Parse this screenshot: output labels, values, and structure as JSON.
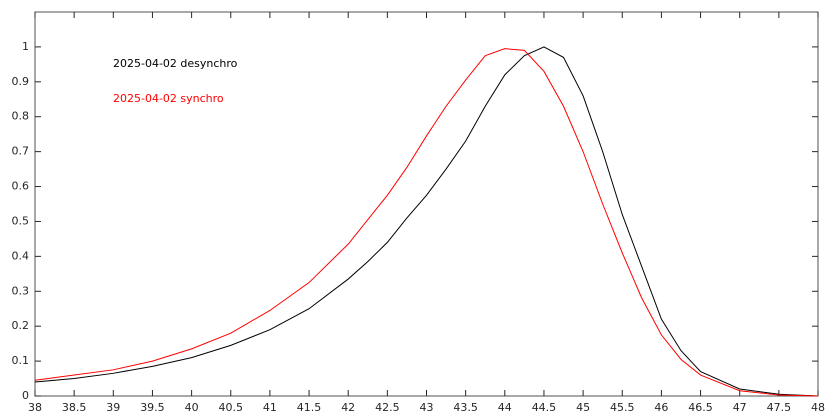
{
  "chart_data": {
    "type": "line",
    "x": [
      38,
      38.5,
      39,
      39.5,
      40,
      40.5,
      41,
      41.5,
      42,
      42.25,
      42.5,
      42.75,
      43,
      43.25,
      43.5,
      43.75,
      44,
      44.25,
      44.5,
      44.75,
      45,
      45.25,
      45.5,
      45.75,
      46,
      46.25,
      46.5,
      47,
      47.5,
      48
    ],
    "series": [
      {
        "name": "2025-04-02 desynchro",
        "color": "#000000",
        "values": [
          0.04,
          0.05,
          0.065,
          0.085,
          0.11,
          0.145,
          0.19,
          0.25,
          0.335,
          0.385,
          0.44,
          0.51,
          0.575,
          0.65,
          0.73,
          0.83,
          0.92,
          0.975,
          1.0,
          0.97,
          0.86,
          0.7,
          0.52,
          0.37,
          0.22,
          0.13,
          0.07,
          0.02,
          0.005,
          0.0
        ]
      },
      {
        "name": "2025-04-02 synchro",
        "color": "#ff0000",
        "values": [
          0.045,
          0.06,
          0.075,
          0.1,
          0.135,
          0.18,
          0.245,
          0.325,
          0.435,
          0.505,
          0.575,
          0.655,
          0.745,
          0.83,
          0.905,
          0.975,
          0.995,
          0.99,
          0.93,
          0.83,
          0.7,
          0.55,
          0.41,
          0.28,
          0.175,
          0.105,
          0.06,
          0.015,
          0.003,
          0.0
        ]
      }
    ],
    "xlim": [
      38,
      48
    ],
    "xticks": [
      38,
      38.5,
      39,
      39.5,
      40,
      40.5,
      41,
      41.5,
      42,
      42.5,
      43,
      43.5,
      44,
      44.5,
      45,
      45.5,
      46,
      46.5,
      47,
      47.5,
      48
    ],
    "ylim": [
      0,
      1.1
    ],
    "yticks": [
      0,
      0.1,
      0.2,
      0.3,
      0.4,
      0.5,
      0.6,
      0.7,
      0.8,
      0.9,
      1
    ],
    "grid": false
  }
}
